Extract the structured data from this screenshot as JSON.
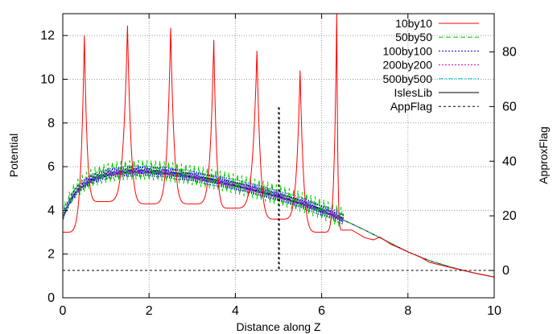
{
  "chart_data": {
    "type": "line",
    "xlabel": "Distance along Z",
    "ylabel": "Potential",
    "y2label": "ApproxFlag",
    "xlim": [
      0,
      10
    ],
    "ylim": [
      0,
      13
    ],
    "y2lim": [
      -10,
      94
    ],
    "xticks": [
      0,
      2,
      4,
      6,
      8,
      10
    ],
    "yticks": [
      0,
      2,
      4,
      6,
      8,
      10,
      12
    ],
    "y2ticks": [
      0,
      20,
      40,
      60,
      80
    ],
    "grid": true,
    "legend_position": "top-right",
    "series": [
      {
        "name": "10by10",
        "color": "#ff0000",
        "dash": "solid",
        "axis": "y",
        "ripple": {
          "type": "spikes",
          "centers": [
            0.5,
            1.5,
            2.5,
            3.5,
            4.5,
            5.5,
            6.35
          ],
          "peaks": [
            12.0,
            12.45,
            12.35,
            11.8,
            11.3,
            10.4,
            13.0
          ],
          "valleys": [
            3.0,
            4.4,
            4.3,
            4.3,
            4.1,
            3.6,
            3.0,
            3.1
          ],
          "valley_x": [
            0,
            0.9,
            2.0,
            3.0,
            3.9,
            5.0,
            6.0,
            6.5
          ]
        }
      },
      {
        "name": "50by50",
        "color": "#00cc00",
        "dash": "dashed",
        "axis": "y",
        "ripple": {
          "type": "teeth",
          "spacing": 0.1,
          "start": 0.05,
          "end": 6.5,
          "amp_top": 0.55,
          "amp_bottom": 0.35
        }
      },
      {
        "name": "100by100",
        "color": "#0000cc",
        "dash": "dotted",
        "axis": "y",
        "ripple": {
          "type": "teeth",
          "spacing": 0.05,
          "start": 0.05,
          "end": 6.5,
          "amp_top": 0.3,
          "amp_bottom": 0.2
        }
      },
      {
        "name": "200by200",
        "color": "#cc00cc",
        "dash": "dotted",
        "axis": "y",
        "ripple": {
          "type": "teeth",
          "spacing": 0.025,
          "start": 0.05,
          "end": 6.5,
          "amp_top": 0.12,
          "amp_bottom": 0.08
        }
      },
      {
        "name": "500by500",
        "color": "#00cccc",
        "dash": "dashdot",
        "axis": "y",
        "ripple": {
          "type": "teeth",
          "spacing": 0.02,
          "start": 0.05,
          "end": 6.5,
          "amp_top": 0.05,
          "amp_bottom": 0.03
        }
      },
      {
        "name": "IslesLib",
        "color": "#000000",
        "dash": "solid",
        "axis": "y",
        "x": [
          0,
          0.1,
          0.2,
          0.35,
          0.5,
          0.7,
          1.0,
          1.3,
          1.6,
          1.9,
          2.2,
          2.5,
          2.8,
          3.1,
          3.4,
          3.7,
          4.0,
          4.3,
          4.6,
          4.9,
          5.2,
          5.5,
          5.8,
          6.1,
          6.4,
          6.7,
          7.0,
          7.5,
          8.0,
          8.5,
          9.0,
          9.5,
          10.0
        ],
        "y": [
          3.6,
          4.1,
          4.5,
          4.9,
          5.15,
          5.4,
          5.6,
          5.7,
          5.75,
          5.75,
          5.72,
          5.66,
          5.58,
          5.48,
          5.37,
          5.25,
          5.12,
          4.98,
          4.83,
          4.67,
          4.5,
          4.32,
          4.12,
          3.9,
          3.65,
          3.38,
          3.1,
          2.6,
          2.1,
          1.7,
          1.4,
          1.15,
          0.95
        ]
      },
      {
        "name": "AppFlag",
        "color": "#000000",
        "dash": "short-dash",
        "axis": "y2",
        "x": [
          0,
          5.0,
          5.0,
          5.02,
          5.02,
          10.0
        ],
        "y": [
          0,
          0,
          60,
          60,
          0,
          0
        ]
      }
    ]
  }
}
